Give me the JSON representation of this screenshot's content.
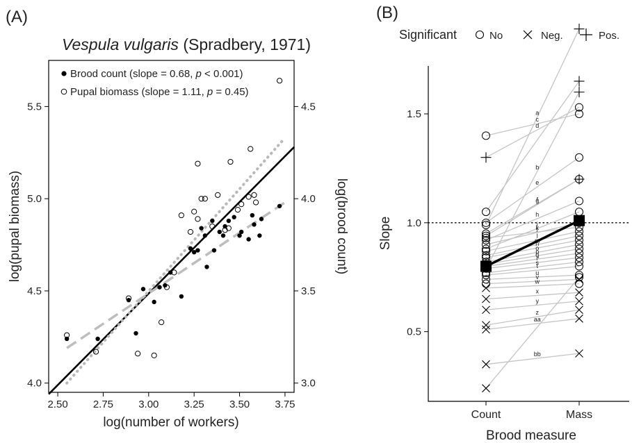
{
  "panel_a": {
    "panel_label": "(A)",
    "title_species": "Vespula vulgaris",
    "title_ref": "(Spradbery, 1971)",
    "xlabel": "log(number of workers)",
    "ylabel_left": "log(pupal biomass)",
    "ylabel_right": "log(brood count)",
    "legend": {
      "brood_prefix": "Brood count (slope = 0.68, ",
      "brood_p_italic": "p",
      "brood_suffix": " < 0.001)",
      "pupal_prefix": "Pupal biomass (slope = 1.11, ",
      "pupal_p_italic": "p",
      "pupal_suffix": " = 0.45)"
    }
  },
  "panel_b": {
    "panel_label": "(B)",
    "legend_title": "Significant",
    "legend_items": [
      "No",
      "Neg.",
      "Pos."
    ],
    "xlabel": "Brood measure",
    "ylabel": "Slope"
  },
  "chart_data": [
    {
      "type": "scatter",
      "panel": "A",
      "xlim": [
        2.45,
        3.8
      ],
      "ylim": [
        3.95,
        5.75
      ],
      "y2lim": [
        2.95,
        4.75
      ],
      "xticks": [
        "2.50",
        "2.75",
        "3.00",
        "3.25",
        "3.50",
        "3.75"
      ],
      "xtick_values": [
        2.5,
        2.75,
        3.0,
        3.25,
        3.5,
        3.75
      ],
      "yticks": [
        "4.0",
        "4.5",
        "5.0",
        "5.5"
      ],
      "ytick_values": [
        4.0,
        4.5,
        5.0,
        5.5
      ],
      "y2ticks": [
        "3.0",
        "3.5",
        "4.0",
        "4.5"
      ],
      "y2tick_values": [
        3.0,
        3.5,
        4.0,
        4.5
      ],
      "series": [
        {
          "name": "Brood count",
          "axis": "right",
          "marker": "filled",
          "points": [
            [
              2.55,
              3.24
            ],
            [
              2.72,
              3.24
            ],
            [
              2.89,
              3.45
            ],
            [
              2.93,
              3.27
            ],
            [
              2.97,
              3.51
            ],
            [
              3.03,
              3.44
            ],
            [
              3.06,
              3.52
            ],
            [
              3.09,
              3.53
            ],
            [
              3.12,
              3.6
            ],
            [
              3.18,
              3.47
            ],
            [
              3.23,
              3.73
            ],
            [
              3.25,
              3.71
            ],
            [
              3.27,
              3.72
            ],
            [
              3.29,
              3.84
            ],
            [
              3.31,
              3.8
            ],
            [
              3.32,
              3.63
            ],
            [
              3.36,
              3.72
            ],
            [
              3.39,
              3.82
            ],
            [
              3.41,
              3.8
            ],
            [
              3.42,
              3.85
            ],
            [
              3.44,
              3.88
            ],
            [
              3.47,
              3.9
            ],
            [
              3.5,
              3.8
            ],
            [
              3.51,
              3.82
            ],
            [
              3.55,
              3.78
            ],
            [
              3.57,
              3.91
            ],
            [
              3.58,
              3.86
            ],
            [
              3.61,
              3.8
            ],
            [
              3.62,
              3.89
            ],
            [
              3.72,
              3.96
            ],
            [
              3.35,
              3.88
            ]
          ]
        },
        {
          "name": "Pupal biomass",
          "axis": "left",
          "marker": "open",
          "points": [
            [
              2.55,
              4.26
            ],
            [
              2.71,
              4.17
            ],
            [
              2.89,
              4.46
            ],
            [
              2.94,
              4.16
            ],
            [
              3.03,
              4.15
            ],
            [
              3.07,
              4.33
            ],
            [
              3.1,
              4.52
            ],
            [
              3.14,
              4.6
            ],
            [
              3.18,
              4.91
            ],
            [
              3.23,
              4.82
            ],
            [
              3.25,
              4.93
            ],
            [
              3.27,
              5.19
            ],
            [
              3.29,
              5.0
            ],
            [
              3.31,
              5.0
            ],
            [
              3.35,
              4.85
            ],
            [
              3.38,
              5.02
            ],
            [
              3.42,
              4.83
            ],
            [
              3.45,
              5.2
            ],
            [
              3.49,
              4.94
            ],
            [
              3.51,
              4.97
            ],
            [
              3.55,
              5.01
            ],
            [
              3.56,
              5.27
            ],
            [
              3.58,
              5.02
            ],
            [
              3.59,
              4.98
            ],
            [
              3.72,
              5.64
            ],
            [
              3.27,
              4.89
            ],
            [
              3.44,
              4.84
            ]
          ]
        }
      ],
      "lines": [
        {
          "name": "isometry",
          "style": "solid-black",
          "axis": "left",
          "from": [
            2.45,
            3.94
          ],
          "to": [
            3.8,
            5.28
          ]
        },
        {
          "name": "Pupal biomass fit",
          "style": "dotted-gray",
          "axis": "left",
          "from": [
            2.55,
            4.0
          ],
          "to": [
            3.75,
            5.33
          ]
        },
        {
          "name": "Brood count fit",
          "style": "dashed-gray",
          "axis": "right",
          "from": [
            2.55,
            3.19
          ],
          "to": [
            3.75,
            3.98
          ]
        }
      ]
    },
    {
      "type": "line",
      "panel": "B",
      "categories": [
        "Count",
        "Mass"
      ],
      "ylim": [
        0.18,
        1.72
      ],
      "yticks": [
        "0.5",
        "1.0",
        "1.5"
      ],
      "ytick_values": [
        0.5,
        1.0,
        1.5
      ],
      "reference_line": 1.0,
      "mean": [
        0.8,
        1.01
      ],
      "pairs": [
        {
          "label": "",
          "count": 1.05,
          "mass": 1.65,
          "sig_count": "No",
          "sig_mass": "Pos."
        },
        {
          "label": "a",
          "count": 0.99,
          "mass": 1.89,
          "sig_count": "No",
          "sig_mass": "Pos."
        },
        {
          "label": "b",
          "count": 0.79,
          "mass": 1.6,
          "sig_count": "No",
          "sig_mass": "Pos."
        },
        {
          "label": "c",
          "count": 1.4,
          "mass": 1.5,
          "sig_count": "No",
          "sig_mass": "No"
        },
        {
          "label": "d",
          "count": 1.3,
          "mass": 1.53,
          "sig_count": "Pos.",
          "sig_mass": "No"
        },
        {
          "label": "e",
          "count": 1.0,
          "mass": 1.3,
          "sig_count": "No",
          "sig_mass": "No"
        },
        {
          "label": "f",
          "count": 0.95,
          "mass": 1.2,
          "sig_count": "No",
          "sig_mass": "No"
        },
        {
          "label": "g",
          "count": 0.94,
          "mass": 1.2,
          "sig_count": "No",
          "sig_mass": "Pos."
        },
        {
          "label": "h",
          "count": 0.92,
          "mass": 1.1,
          "sig_count": "No",
          "sig_mass": "No"
        },
        {
          "label": "i",
          "count": 0.88,
          "mass": 1.05,
          "sig_count": "No",
          "sig_mass": "No"
        },
        {
          "label": "j",
          "count": 0.9,
          "mass": 1.0,
          "sig_count": "No",
          "sig_mass": "No"
        },
        {
          "label": "k",
          "count": 0.93,
          "mass": 0.98,
          "sig_count": "No",
          "sig_mass": "No"
        },
        {
          "label": "l",
          "count": 0.87,
          "mass": 0.96,
          "sig_count": "No",
          "sig_mass": "No"
        },
        {
          "label": "m",
          "count": 0.85,
          "mass": 0.94,
          "sig_count": "No",
          "sig_mass": "No"
        },
        {
          "label": "n",
          "count": 0.84,
          "mass": 0.92,
          "sig_count": "No",
          "sig_mass": "No"
        },
        {
          "label": "o",
          "count": 0.82,
          "mass": 0.9,
          "sig_count": "No",
          "sig_mass": "No"
        },
        {
          "label": "p",
          "count": 0.81,
          "mass": 0.88,
          "sig_count": "No",
          "sig_mass": "No"
        },
        {
          "label": "q",
          "count": 0.8,
          "mass": 0.86,
          "sig_count": "No",
          "sig_mass": "No"
        },
        {
          "label": "r",
          "count": 0.79,
          "mass": 0.84,
          "sig_count": "No",
          "sig_mass": "No"
        },
        {
          "label": "s",
          "count": 0.77,
          "mass": 0.82,
          "sig_count": "No",
          "sig_mass": "No"
        },
        {
          "label": "t",
          "count": 0.76,
          "mass": 0.8,
          "sig_count": "No",
          "sig_mass": "No"
        },
        {
          "label": "u",
          "count": 0.74,
          "mass": 0.76,
          "sig_count": "No",
          "sig_mass": "No"
        },
        {
          "label": "v",
          "count": 0.72,
          "mass": 0.74,
          "sig_count": "No",
          "sig_mass": "Neg."
        },
        {
          "label": "w",
          "count": 0.7,
          "mass": 0.72,
          "sig_count": "Neg.",
          "sig_mass": "No"
        },
        {
          "label": "x",
          "count": 0.65,
          "mass": 0.68,
          "sig_count": "Neg.",
          "sig_mass": "Neg."
        },
        {
          "label": "y",
          "count": 0.6,
          "mass": 0.64,
          "sig_count": "Neg.",
          "sig_mass": "Neg."
        },
        {
          "label": "z",
          "count": 0.53,
          "mass": 0.6,
          "sig_count": "Neg.",
          "sig_mass": "Neg."
        },
        {
          "label": "aa",
          "count": 0.51,
          "mass": 0.56,
          "sig_count": "Neg.",
          "sig_mass": "Neg."
        },
        {
          "label": "bb",
          "count": 0.35,
          "mass": 0.4,
          "sig_count": "Neg.",
          "sig_mass": "Neg."
        },
        {
          "label": "",
          "count": 0.24,
          "mass": 0.75,
          "sig_count": "Neg.",
          "sig_mass": "No"
        }
      ]
    }
  ]
}
